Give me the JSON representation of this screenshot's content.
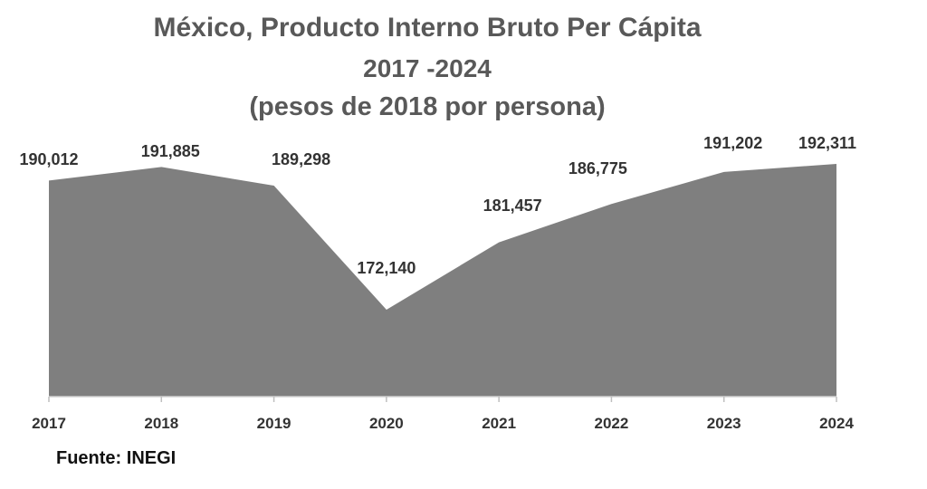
{
  "chart_data": {
    "type": "area",
    "title": "México, Producto Interno Bruto Per Cápita",
    "subtitle": "2017 -2024",
    "subtitle2": "(pesos de 2018 por persona)",
    "categories": [
      "2017",
      "2018",
      "2019",
      "2020",
      "2021",
      "2022",
      "2023",
      "2024"
    ],
    "values": [
      190012,
      191885,
      189298,
      172140,
      181457,
      186775,
      191202,
      192311
    ],
    "value_labels": [
      "190,012",
      "191,885",
      "189,298",
      "172,140",
      "181,457",
      "186,775",
      "191,202",
      "192,311"
    ],
    "ylim": [
      160000,
      193000
    ],
    "grid": false,
    "legend": "none",
    "fill_color": "#7f7f7f",
    "source": "Fuente: INEGI"
  }
}
